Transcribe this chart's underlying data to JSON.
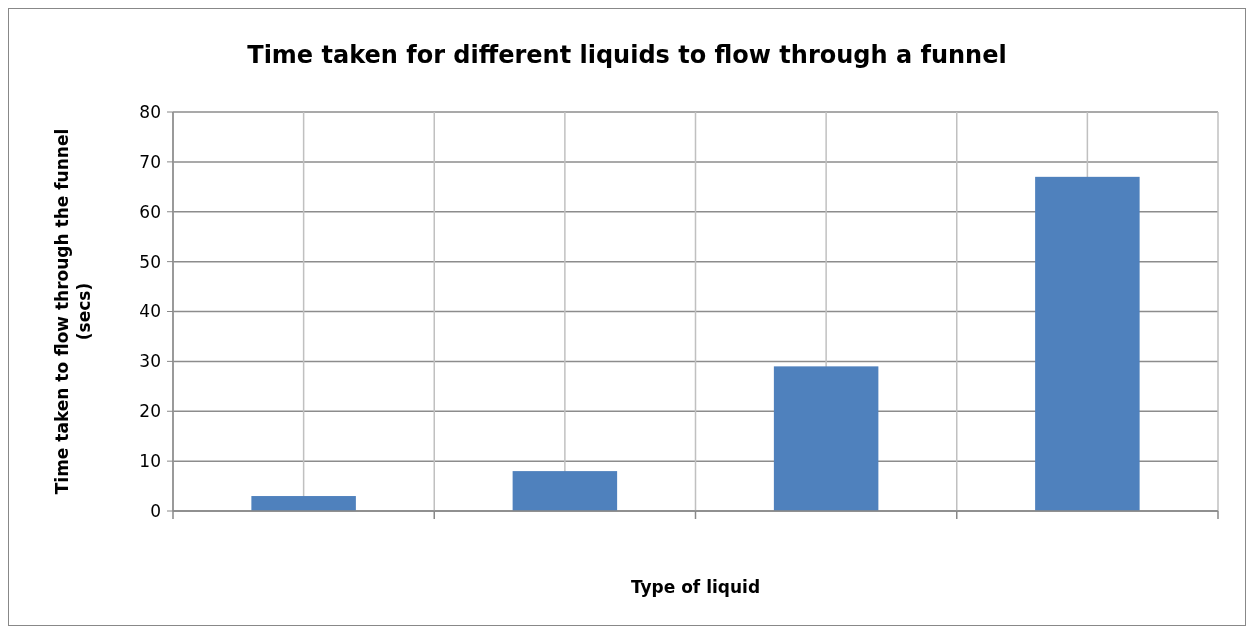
{
  "chart_data": {
    "type": "bar",
    "title": "Time taken for different liquids to flow through a funnel",
    "xlabel": "Type of liquid",
    "ylabel": "Time taken to flow through the funnel (secs)",
    "categories": [
      null,
      null,
      null,
      null
    ],
    "values": [
      3,
      8,
      29,
      67
    ],
    "color": "#4f81bd",
    "ylim": [
      0,
      80
    ],
    "yticks": [
      0,
      10,
      20,
      30,
      40,
      50,
      60,
      70,
      80
    ],
    "grid": true
  }
}
